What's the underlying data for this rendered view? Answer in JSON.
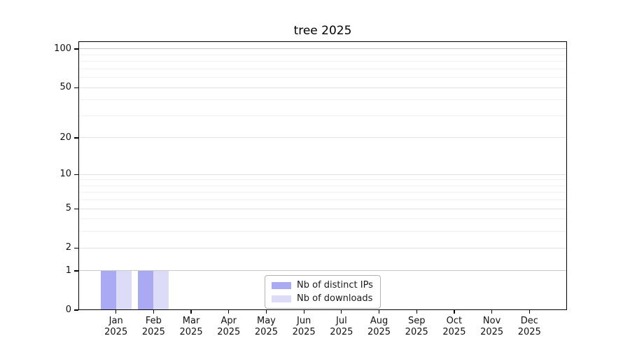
{
  "chart_data": {
    "type": "bar",
    "title": "tree 2025",
    "categories": [
      "Jan",
      "Feb",
      "Mar",
      "Apr",
      "May",
      "Jun",
      "Jul",
      "Aug",
      "Sep",
      "Oct",
      "Nov",
      "Dec"
    ],
    "year": "2025",
    "series": [
      {
        "name": "Nb of distinct IPs",
        "color": "#a9a9f4",
        "values": [
          1,
          1,
          0,
          0,
          0,
          0,
          0,
          0,
          0,
          0,
          0,
          0
        ]
      },
      {
        "name": "Nb of downloads",
        "color": "#dcdcf9",
        "values": [
          1,
          1,
          0,
          0,
          0,
          0,
          0,
          0,
          0,
          0,
          0,
          0
        ]
      }
    ],
    "yscale": "log1p",
    "ylim": [
      0,
      100
    ],
    "yticks": [
      0,
      1,
      2,
      5,
      10,
      20,
      50,
      100
    ],
    "minor_yticks": [
      3,
      4,
      6,
      7,
      8,
      9,
      30,
      40,
      60,
      70,
      80,
      90
    ],
    "grid": true,
    "legend_position": "lower center",
    "colors": {
      "grid_strong": "#c8c8c8",
      "grid_major": "#e2e2e2",
      "grid_minor": "#f1f1f1",
      "axis": "#000000",
      "tick_label": "#111111"
    }
  }
}
